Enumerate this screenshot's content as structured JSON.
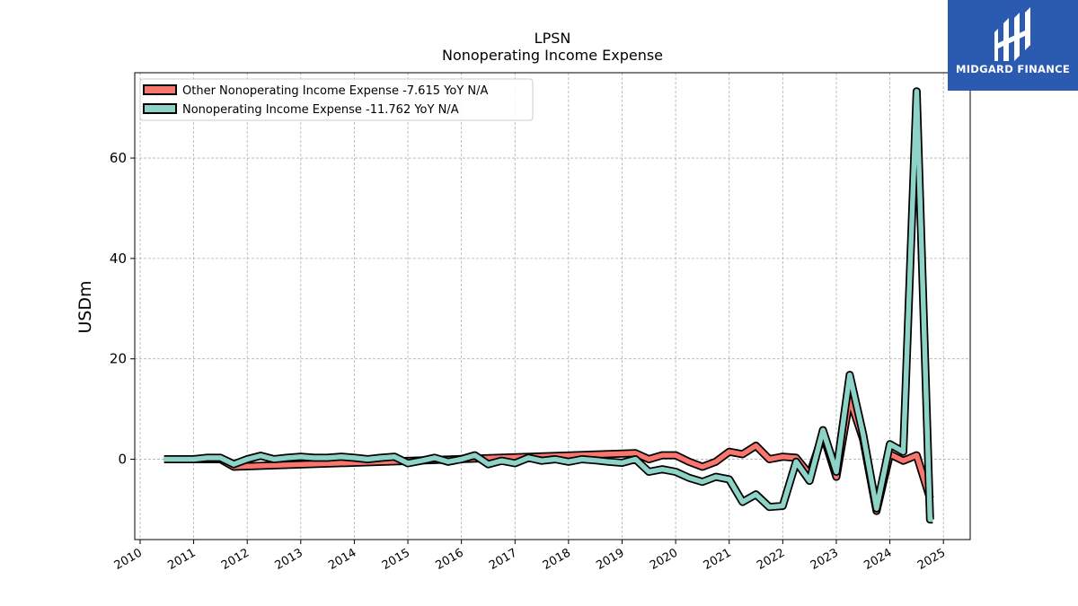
{
  "brand": {
    "name": "MIDGARD FINANCE",
    "bg_color": "#2b5bb0"
  },
  "chart_data": {
    "type": "line",
    "title": "LPSN",
    "subtitle": "Nonoperating Income Expense",
    "ylabel": "USDm",
    "xlabel": "",
    "xlim": [
      2009.9,
      2025.5
    ],
    "ylim": [
      -16,
      77
    ],
    "xticks": [
      "2010",
      "2011",
      "2012",
      "2013",
      "2014",
      "2015",
      "2016",
      "2017",
      "2018",
      "2019",
      "2020",
      "2021",
      "2022",
      "2023",
      "2024",
      "2025"
    ],
    "yticks": [
      "0",
      "20",
      "40",
      "60"
    ],
    "grid": true,
    "legend_position": "upper-left",
    "series": [
      {
        "name": "Other Nonoperating Income Expense",
        "legend_label": "Other Nonoperating Income Expense  -7.615 YoY N/A",
        "color": "#f8766d",
        "points": [
          [
            2010.45,
            0.0
          ],
          [
            2010.7,
            0.0
          ],
          [
            2011.0,
            0.0
          ],
          [
            2011.25,
            0.0
          ],
          [
            2011.5,
            0.0
          ],
          [
            2011.75,
            -1.5
          ],
          [
            2019.25,
            1.2
          ],
          [
            2019.5,
            0.0
          ],
          [
            2019.75,
            0.8
          ],
          [
            2020.0,
            0.8
          ],
          [
            2020.25,
            -0.5
          ],
          [
            2020.5,
            -1.5
          ],
          [
            2020.75,
            -0.5
          ],
          [
            2021.0,
            1.5
          ],
          [
            2021.25,
            1.0
          ],
          [
            2021.5,
            2.7
          ],
          [
            2021.75,
            0.0
          ],
          [
            2022.0,
            0.5
          ],
          [
            2022.25,
            0.3
          ],
          [
            2022.5,
            -3.0
          ],
          [
            2022.75,
            5.0
          ],
          [
            2023.0,
            -3.5
          ],
          [
            2023.25,
            12.0
          ],
          [
            2023.5,
            4.0
          ],
          [
            2023.75,
            -10.3
          ],
          [
            2024.0,
            1.0
          ],
          [
            2024.25,
            -0.3
          ],
          [
            2024.5,
            0.8
          ],
          [
            2024.75,
            -7.8
          ]
        ]
      },
      {
        "name": "Nonoperating Income Expense",
        "legend_label": "Nonoperating Income Expense  -11.762 YoY N/A",
        "color": "#8dd3c7",
        "points": [
          [
            2010.45,
            0.0
          ],
          [
            2010.7,
            0.0
          ],
          [
            2011.0,
            0.0
          ],
          [
            2011.25,
            0.3
          ],
          [
            2011.5,
            0.3
          ],
          [
            2011.75,
            -1.0
          ],
          [
            2012.0,
            0.0
          ],
          [
            2012.25,
            0.7
          ],
          [
            2012.5,
            0.0
          ],
          [
            2012.75,
            0.3
          ],
          [
            2013.0,
            0.5
          ],
          [
            2013.25,
            0.3
          ],
          [
            2013.5,
            0.3
          ],
          [
            2013.75,
            0.5
          ],
          [
            2014.0,
            0.3
          ],
          [
            2014.25,
            0.0
          ],
          [
            2014.5,
            0.3
          ],
          [
            2014.75,
            0.5
          ],
          [
            2015.0,
            -0.8
          ],
          [
            2015.25,
            -0.3
          ],
          [
            2015.5,
            0.3
          ],
          [
            2015.75,
            -0.5
          ],
          [
            2016.0,
            0.0
          ],
          [
            2016.25,
            0.8
          ],
          [
            2016.5,
            -1.0
          ],
          [
            2016.75,
            -0.3
          ],
          [
            2017.0,
            -0.8
          ],
          [
            2017.25,
            0.3
          ],
          [
            2017.5,
            -0.3
          ],
          [
            2017.75,
            0.0
          ],
          [
            2018.0,
            -0.5
          ],
          [
            2018.25,
            0.0
          ],
          [
            2018.5,
            -0.2
          ],
          [
            2018.75,
            -0.5
          ],
          [
            2019.0,
            -0.7
          ],
          [
            2019.25,
            0.0
          ],
          [
            2019.5,
            -2.5
          ],
          [
            2019.75,
            -2.0
          ],
          [
            2020.0,
            -2.5
          ],
          [
            2020.25,
            -3.7
          ],
          [
            2020.5,
            -4.5
          ],
          [
            2020.75,
            -3.5
          ],
          [
            2021.0,
            -4.0
          ],
          [
            2021.25,
            -8.5
          ],
          [
            2021.5,
            -7.0
          ],
          [
            2021.75,
            -9.5
          ],
          [
            2022.0,
            -9.3
          ],
          [
            2022.25,
            -0.5
          ],
          [
            2022.5,
            -4.3
          ],
          [
            2022.75,
            5.8
          ],
          [
            2023.0,
            -2.5
          ],
          [
            2023.25,
            16.8
          ],
          [
            2023.5,
            5.0
          ],
          [
            2023.75,
            -9.8
          ],
          [
            2024.0,
            3.0
          ],
          [
            2024.25,
            1.5
          ],
          [
            2024.5,
            73.3
          ],
          [
            2024.75,
            -12.0
          ],
          [
            2024.8,
            -12.0
          ]
        ]
      }
    ]
  }
}
